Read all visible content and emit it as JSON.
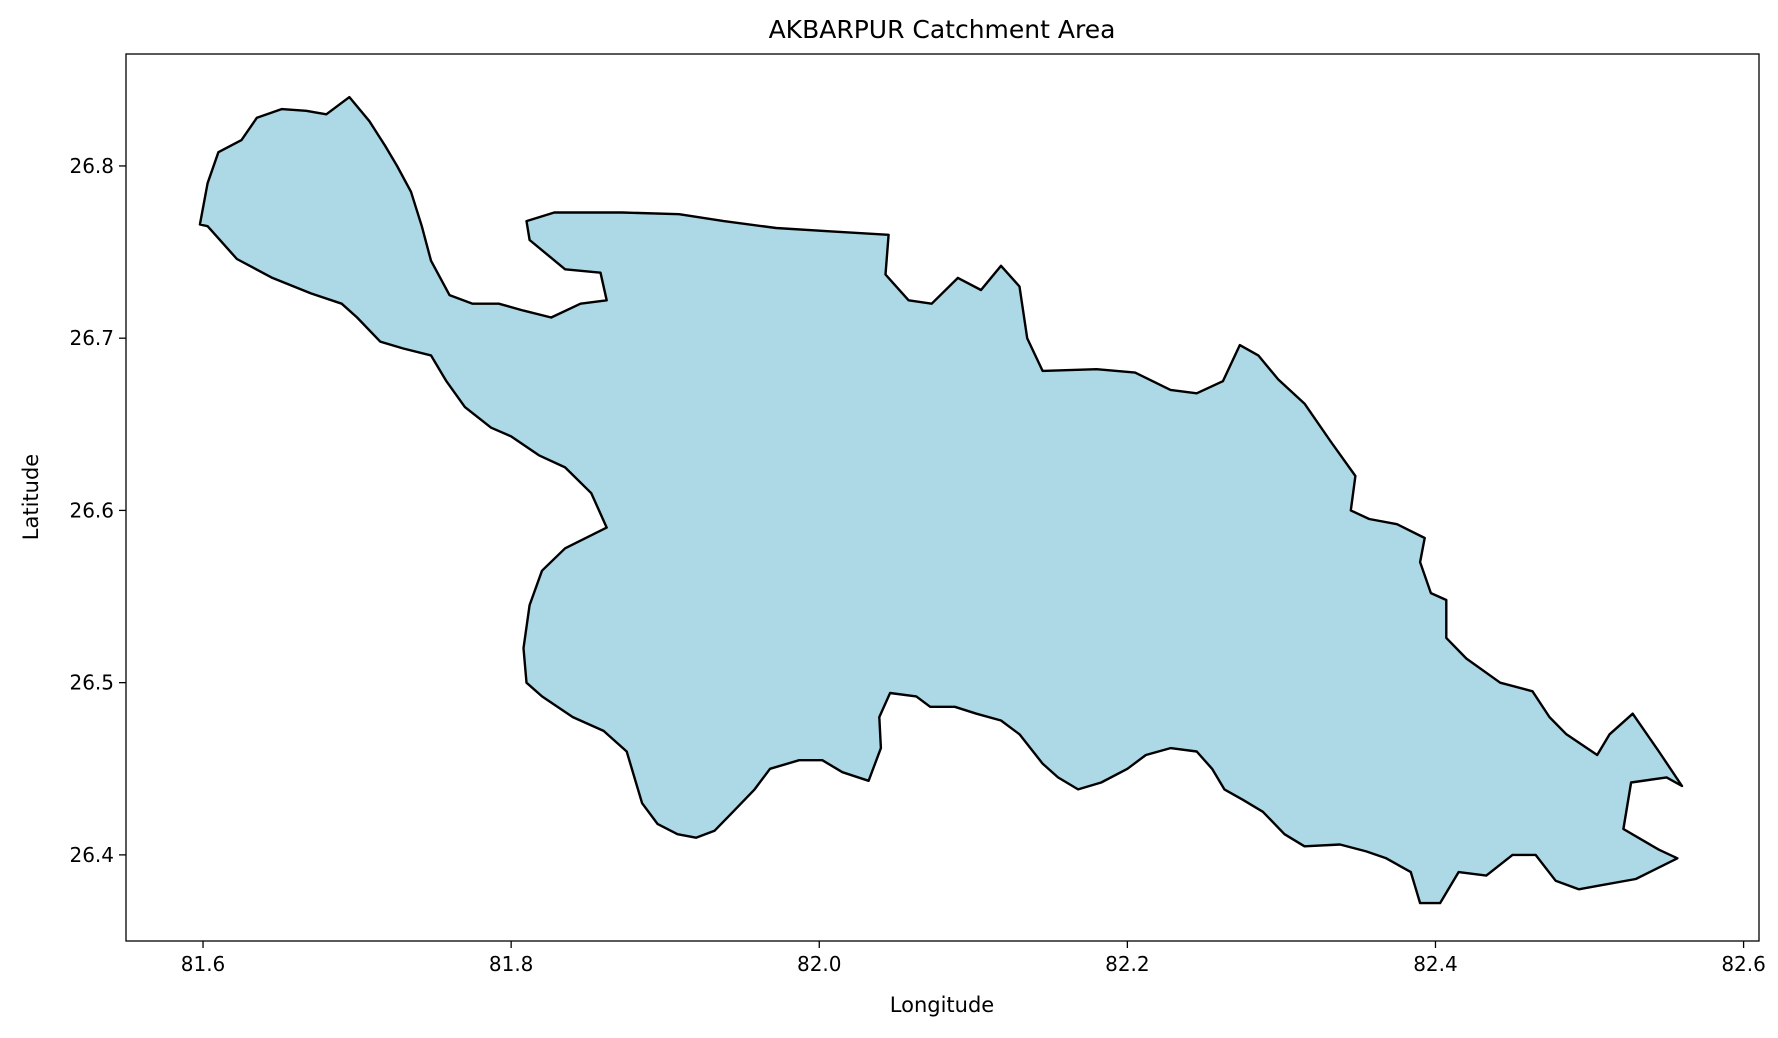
{
  "chart_data": {
    "type": "map",
    "title": "AKBARPUR Catchment Area",
    "xlabel": "Longitude",
    "ylabel": "Latitude",
    "xlim": [
      81.55,
      82.61
    ],
    "ylim": [
      26.35,
      26.865
    ],
    "xticks": [
      81.6,
      81.8,
      82.0,
      82.2,
      82.4,
      82.6
    ],
    "yticks": [
      26.4,
      26.5,
      26.6,
      26.7,
      26.8
    ],
    "xtick_labels": [
      "81.6",
      "81.8",
      "82.0",
      "82.2",
      "82.4",
      "82.6"
    ],
    "ytick_labels": [
      "26.4",
      "26.5",
      "26.6",
      "26.7",
      "26.8"
    ],
    "grid": false,
    "fill_color": "#add8e6",
    "edge_color": "#000000",
    "boundary": [
      [
        81.598,
        26.766
      ],
      [
        81.603,
        26.79
      ],
      [
        81.61,
        26.808
      ],
      [
        81.625,
        26.815
      ],
      [
        81.635,
        26.828
      ],
      [
        81.651,
        26.833
      ],
      [
        81.667,
        26.832
      ],
      [
        81.68,
        26.83
      ],
      [
        81.695,
        26.84
      ],
      [
        81.708,
        26.826
      ],
      [
        81.718,
        26.812
      ],
      [
        81.726,
        26.8
      ],
      [
        81.735,
        26.785
      ],
      [
        81.742,
        26.765
      ],
      [
        81.748,
        26.745
      ],
      [
        81.76,
        26.725
      ],
      [
        81.775,
        26.72
      ],
      [
        81.792,
        26.72
      ],
      [
        81.808,
        26.716
      ],
      [
        81.826,
        26.712
      ],
      [
        81.845,
        26.72
      ],
      [
        81.862,
        26.722
      ],
      [
        81.858,
        26.738
      ],
      [
        81.835,
        26.74
      ],
      [
        81.812,
        26.757
      ],
      [
        81.81,
        26.768
      ],
      [
        81.828,
        26.773
      ],
      [
        81.872,
        26.773
      ],
      [
        81.909,
        26.772
      ],
      [
        81.938,
        26.768
      ],
      [
        81.972,
        26.764
      ],
      [
        82.008,
        26.762
      ],
      [
        82.045,
        26.76
      ],
      [
        82.043,
        26.737
      ],
      [
        82.058,
        26.722
      ],
      [
        82.073,
        26.72
      ],
      [
        82.09,
        26.735
      ],
      [
        82.105,
        26.728
      ],
      [
        82.118,
        26.742
      ],
      [
        82.13,
        26.73
      ],
      [
        82.135,
        26.7
      ],
      [
        82.145,
        26.681
      ],
      [
        82.18,
        26.682
      ],
      [
        82.205,
        26.68
      ],
      [
        82.228,
        26.67
      ],
      [
        82.245,
        26.668
      ],
      [
        82.262,
        26.675
      ],
      [
        82.273,
        26.696
      ],
      [
        82.285,
        26.69
      ],
      [
        82.298,
        26.676
      ],
      [
        82.315,
        26.662
      ],
      [
        82.332,
        26.64
      ],
      [
        82.348,
        26.62
      ],
      [
        82.345,
        26.6
      ],
      [
        82.357,
        26.595
      ],
      [
        82.375,
        26.592
      ],
      [
        82.393,
        26.584
      ],
      [
        82.39,
        26.57
      ],
      [
        82.397,
        26.552
      ],
      [
        82.407,
        26.548
      ],
      [
        82.407,
        26.526
      ],
      [
        82.42,
        26.514
      ],
      [
        82.442,
        26.5
      ],
      [
        82.463,
        26.495
      ],
      [
        82.474,
        26.48
      ],
      [
        82.485,
        26.47
      ],
      [
        82.505,
        26.458
      ],
      [
        82.513,
        26.47
      ],
      [
        82.528,
        26.482
      ],
      [
        82.545,
        26.46
      ],
      [
        82.56,
        26.44
      ],
      [
        82.55,
        26.445
      ],
      [
        82.527,
        26.442
      ],
      [
        82.522,
        26.415
      ],
      [
        82.545,
        26.403
      ],
      [
        82.557,
        26.398
      ],
      [
        82.53,
        26.386
      ],
      [
        82.505,
        26.382
      ],
      [
        82.493,
        26.38
      ],
      [
        82.478,
        26.385
      ],
      [
        82.465,
        26.4
      ],
      [
        82.45,
        26.4
      ],
      [
        82.433,
        26.388
      ],
      [
        82.415,
        26.39
      ],
      [
        82.403,
        26.372
      ],
      [
        82.39,
        26.372
      ],
      [
        82.384,
        26.39
      ],
      [
        82.368,
        26.398
      ],
      [
        82.355,
        26.402
      ],
      [
        82.338,
        26.406
      ],
      [
        82.315,
        26.405
      ],
      [
        82.302,
        26.412
      ],
      [
        82.288,
        26.425
      ],
      [
        82.275,
        26.432
      ],
      [
        82.263,
        26.438
      ],
      [
        82.255,
        26.45
      ],
      [
        82.245,
        26.46
      ],
      [
        82.228,
        26.462
      ],
      [
        82.212,
        26.458
      ],
      [
        82.2,
        26.45
      ],
      [
        82.183,
        26.442
      ],
      [
        82.168,
        26.438
      ],
      [
        82.155,
        26.445
      ],
      [
        82.145,
        26.453
      ],
      [
        82.13,
        26.47
      ],
      [
        82.118,
        26.478
      ],
      [
        82.102,
        26.482
      ],
      [
        82.088,
        26.486
      ],
      [
        82.072,
        26.486
      ],
      [
        82.063,
        26.492
      ],
      [
        82.046,
        26.494
      ],
      [
        82.039,
        26.48
      ],
      [
        82.04,
        26.462
      ],
      [
        82.032,
        26.443
      ],
      [
        82.015,
        26.448
      ],
      [
        82.002,
        26.455
      ],
      [
        81.987,
        26.455
      ],
      [
        81.968,
        26.45
      ],
      [
        81.958,
        26.438
      ],
      [
        81.944,
        26.425
      ],
      [
        81.932,
        26.414
      ],
      [
        81.92,
        26.41
      ],
      [
        81.908,
        26.412
      ],
      [
        81.895,
        26.418
      ],
      [
        81.885,
        26.43
      ],
      [
        81.88,
        26.445
      ],
      [
        81.875,
        26.46
      ],
      [
        81.86,
        26.472
      ],
      [
        81.84,
        26.48
      ],
      [
        81.82,
        26.492
      ],
      [
        81.81,
        26.5
      ],
      [
        81.808,
        26.52
      ],
      [
        81.812,
        26.545
      ],
      [
        81.82,
        26.565
      ],
      [
        81.835,
        26.578
      ],
      [
        81.862,
        26.59
      ],
      [
        81.852,
        26.61
      ],
      [
        81.835,
        26.625
      ],
      [
        81.818,
        26.632
      ],
      [
        81.8,
        26.643
      ],
      [
        81.787,
        26.648
      ],
      [
        81.77,
        26.66
      ],
      [
        81.758,
        26.675
      ],
      [
        81.748,
        26.69
      ],
      [
        81.73,
        26.694
      ],
      [
        81.715,
        26.698
      ],
      [
        81.7,
        26.712
      ],
      [
        81.69,
        26.72
      ],
      [
        81.67,
        26.726
      ],
      [
        81.645,
        26.735
      ],
      [
        81.622,
        26.746
      ],
      [
        81.603,
        26.765
      ],
      [
        81.598,
        26.766
      ]
    ]
  }
}
